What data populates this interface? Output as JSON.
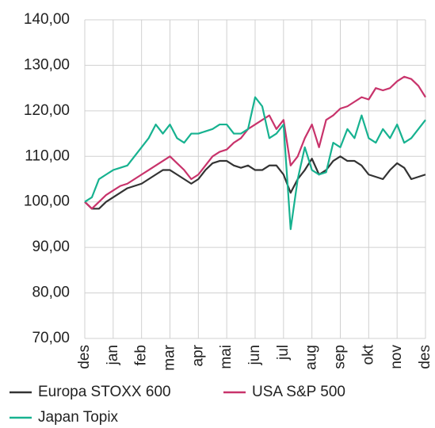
{
  "chart_data": {
    "type": "line",
    "x": [
      0,
      0.25,
      0.5,
      0.75,
      1,
      1.25,
      1.5,
      1.75,
      2,
      2.25,
      2.5,
      2.75,
      3,
      3.25,
      3.5,
      3.75,
      4,
      4.25,
      4.5,
      4.75,
      5,
      5.25,
      5.5,
      5.75,
      6,
      6.25,
      6.5,
      6.75,
      7,
      7.25,
      7.5,
      7.75,
      8,
      8.25,
      8.5,
      8.75,
      9,
      9.25,
      9.5,
      9.75,
      10,
      10.25,
      10.5,
      10.75,
      11,
      11.25,
      11.5,
      11.75,
      12
    ],
    "series": [
      {
        "name": "Europa STOXX 600",
        "color": "#333333",
        "values": [
          100,
          98.5,
          98.5,
          100,
          101,
          102,
          103,
          103.5,
          104,
          105,
          106,
          107,
          107,
          106,
          105,
          104,
          105,
          107,
          108.5,
          109,
          109,
          108,
          107.5,
          108,
          107,
          107,
          108,
          108,
          106,
          102,
          105,
          107,
          109.5,
          106,
          107,
          109,
          110,
          109,
          109,
          108,
          106,
          105.5,
          105,
          107,
          108.5,
          107.5,
          105,
          105.5,
          106
        ]
      },
      {
        "name": "USA S&P 500",
        "color": "#c8336b",
        "values": [
          100,
          98.5,
          100,
          101.5,
          102.5,
          103.5,
          104,
          105,
          106,
          107,
          108,
          109,
          110,
          108.5,
          107,
          105,
          106,
          108,
          110,
          111,
          111.5,
          113,
          114,
          116,
          117,
          118,
          119,
          116,
          118,
          108,
          110,
          114,
          117,
          112,
          118,
          119,
          120.5,
          121,
          122,
          123,
          122.5,
          125,
          124.5,
          125,
          126.5,
          127.5,
          127,
          125.5,
          123
        ]
      },
      {
        "name": "Japan Topix",
        "color": "#17b290",
        "values": [
          100,
          101,
          105,
          106,
          107,
          107.5,
          108,
          110,
          112,
          114,
          117,
          115,
          117,
          114,
          113,
          115,
          115,
          115.5,
          116,
          117,
          117,
          115,
          115,
          116,
          123,
          121,
          114,
          115,
          117,
          94,
          105,
          112,
          107,
          106,
          106.5,
          113,
          112,
          116,
          114,
          119,
          114,
          113,
          116,
          114,
          117,
          113,
          114,
          116,
          118
        ]
      }
    ],
    "xlim": [
      0,
      12
    ],
    "xticks": [
      {
        "value": 0,
        "label": "des"
      },
      {
        "value": 1,
        "label": "jan"
      },
      {
        "value": 2,
        "label": "feb"
      },
      {
        "value": 3,
        "label": "mar"
      },
      {
        "value": 4,
        "label": "apr"
      },
      {
        "value": 5,
        "label": "mai"
      },
      {
        "value": 6,
        "label": "jun"
      },
      {
        "value": 7,
        "label": "jul"
      },
      {
        "value": 8,
        "label": "aug"
      },
      {
        "value": 9,
        "label": "sep"
      },
      {
        "value": 10,
        "label": "okt"
      },
      {
        "value": 11,
        "label": "nov"
      },
      {
        "value": 12,
        "label": "des"
      }
    ],
    "ylim": [
      70,
      140
    ],
    "yticks": [
      {
        "value": 70,
        "label": "70,00"
      },
      {
        "value": 80,
        "label": "80,00"
      },
      {
        "value": 90,
        "label": "90,00"
      },
      {
        "value": 100,
        "label": "100,00"
      },
      {
        "value": 110,
        "label": "110,00"
      },
      {
        "value": 120,
        "label": "120,00"
      },
      {
        "value": 130,
        "label": "130,00"
      },
      {
        "value": 140,
        "label": "140,00"
      }
    ],
    "grid": true
  }
}
